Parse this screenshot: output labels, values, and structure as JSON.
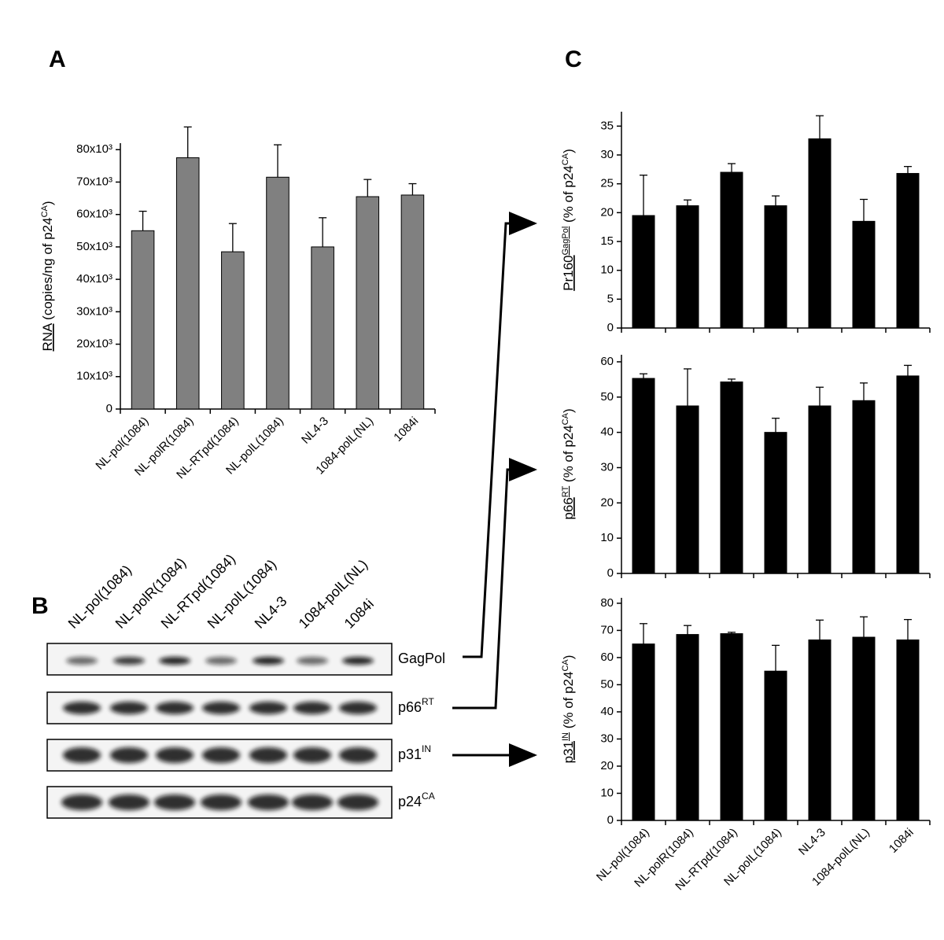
{
  "panels": [
    "A",
    "B",
    "C"
  ],
  "chart_data": [
    {
      "type": "bar",
      "color": "#808080",
      "ylabel": {
        "main": "RNA",
        "rest": " (copies/ng of p24",
        "rest_sup": "CA",
        "end": ")"
      },
      "categories": [
        "NL-pol(1084)",
        "NL-polR(1084)",
        "NL-RTpd(1084)",
        "NL-polL(1084)",
        "NL4-3",
        "1084-polL(NL)",
        "1084i"
      ],
      "values": [
        55000,
        77500,
        48500,
        71500,
        50000,
        65500,
        66000
      ],
      "errors": [
        6000,
        9500,
        8700,
        10000,
        9000,
        5300,
        3500
      ],
      "ylim": [
        0,
        82000
      ],
      "yticks": [
        0,
        {
          "value": 10000,
          "label": "10x10³"
        },
        {
          "value": 20000,
          "label": "20x10³"
        },
        {
          "value": 30000,
          "label": "30x10³"
        },
        {
          "value": 40000,
          "label": "40x10³"
        },
        {
          "value": 50000,
          "label": "50x10³"
        },
        {
          "value": 60000,
          "label": "60x10³"
        },
        {
          "value": 70000,
          "label": "70x10³"
        },
        {
          "value": 80000,
          "label": "80x10³"
        }
      ]
    },
    {
      "type": "bar",
      "color": "#000000",
      "ylabel": {
        "main": "Pr160",
        "sup": "GagPol",
        "rest": " (% of p24",
        "rest_sup": "CA",
        "end": ")"
      },
      "values": [
        19.5,
        21.2,
        27,
        21.2,
        32.8,
        18.5,
        26.8
      ],
      "errors": [
        7,
        1,
        1.5,
        1.7,
        4,
        3.8,
        1.2
      ],
      "ylim": [
        0,
        37.5
      ],
      "yticks": [
        0,
        5,
        10,
        15,
        20,
        25,
        30,
        35
      ]
    },
    {
      "type": "bar",
      "color": "#000000",
      "ylabel": {
        "main": "p66",
        "sup": "RT",
        "rest": " (% of p24",
        "rest_sup": "CA",
        "end": ")"
      },
      "values": [
        55.3,
        47.5,
        54.3,
        40,
        47.5,
        49,
        56
      ],
      "errors": [
        1.3,
        10.5,
        0.8,
        4,
        5.3,
        5,
        3
      ],
      "ylim": [
        0,
        62
      ],
      "yticks": [
        0,
        10,
        20,
        30,
        40,
        50,
        60
      ]
    },
    {
      "type": "bar",
      "color": "#000000",
      "ylabel": {
        "main": "p31",
        "sup": "IN",
        "rest": " (% of p24",
        "rest_sup": "CA",
        "end": ")"
      },
      "categories": [
        "NL-pol(1084)",
        "NL-polR(1084)",
        "NL-RTpd(1084)",
        "NL-polL(1084)",
        "NL4-3",
        "1084-polL(NL)",
        "1084i"
      ],
      "values": [
        65,
        68.5,
        68.8,
        55,
        66.5,
        67.5,
        66.5
      ],
      "errors": [
        7.5,
        3.3,
        0.5,
        9.5,
        7.3,
        7.5,
        7.5
      ],
      "ylim": [
        0,
        82
      ],
      "yticks": [
        0,
        10,
        20,
        30,
        40,
        50,
        60,
        70,
        80
      ]
    }
  ],
  "blot": {
    "lanes": [
      "NL-pol(1084)",
      "NL-polR(1084)",
      "NL-RTpd(1084)",
      "NL-polL(1084)",
      "NL4-3",
      "1084-polL(NL)",
      "1084i"
    ],
    "rows": [
      {
        "name": "GagPol"
      },
      {
        "name": "p66",
        "sup": "RT"
      },
      {
        "name": "p31",
        "sup": "IN"
      },
      {
        "name": "p24",
        "sup": "CA"
      }
    ]
  }
}
